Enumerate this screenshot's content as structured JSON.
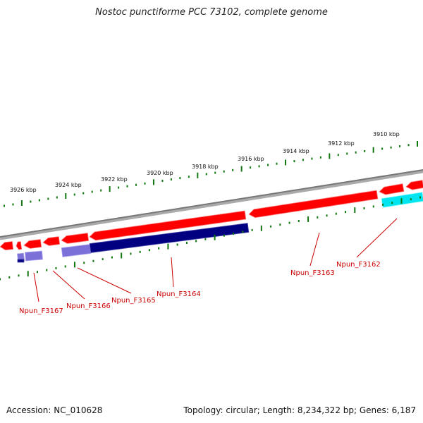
{
  "title": "Nostoc punctiforme PCC 73102, complete genome",
  "footer": {
    "accession": "Accession: NC_010628",
    "topology": "Topology: circular; Length: 8,234,322 bp; Genes: 6,187"
  },
  "colors": {
    "backbone": "#888888",
    "tick": "#117711",
    "gene_forward": "#ff0000",
    "gene_reverse_dark": "#000080",
    "gene_reverse_light": "#7a70d8",
    "gene_cyan": "#00e5f0",
    "label": "#cc0000"
  },
  "ticks": [
    {
      "label": "3926 kbp"
    },
    {
      "label": "3924 kbp"
    },
    {
      "label": "3922 kbp"
    },
    {
      "label": "3920 kbp"
    },
    {
      "label": "3918 kbp"
    },
    {
      "label": "3916 kbp"
    },
    {
      "label": "3914 kbp"
    },
    {
      "label": "3912 kbp"
    },
    {
      "label": "3910 kbp"
    }
  ],
  "gene_labels": [
    {
      "text": "Npun_F3167"
    },
    {
      "text": "Npun_F3166"
    },
    {
      "text": "Npun_F3165"
    },
    {
      "text": "Npun_F3164"
    },
    {
      "text": "Npun_F3163"
    },
    {
      "text": "Npun_F3162"
    }
  ]
}
